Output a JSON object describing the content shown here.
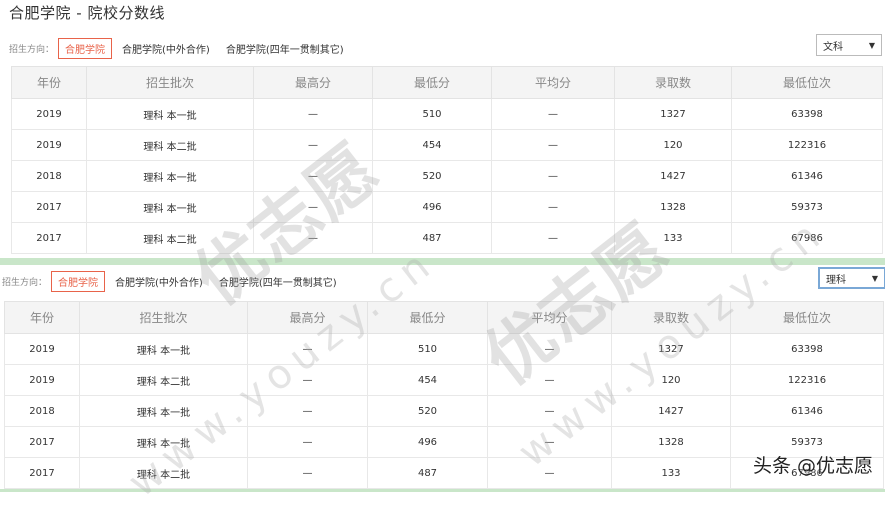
{
  "title": "合肥学院 - 院校分数线",
  "filter": {
    "label": "招生方向：",
    "options": [
      "合肥学院",
      "合肥学院(中外合作)",
      "合肥学院(四年一贯制其它)"
    ],
    "active": "合肥学院"
  },
  "top_select": {
    "value": "文科"
  },
  "bottom_select": {
    "value": "理科"
  },
  "table": {
    "headers": [
      "年份",
      "招生批次",
      "最高分",
      "最低分",
      "平均分",
      "录取数",
      "最低位次"
    ],
    "rows": [
      [
        "2019",
        "理科 本一批",
        "—",
        "510",
        "—",
        "1327",
        "63398"
      ],
      [
        "2019",
        "理科 本二批",
        "—",
        "454",
        "—",
        "120",
        "122316"
      ],
      [
        "2018",
        "理科 本一批",
        "—",
        "520",
        "—",
        "1427",
        "61346"
      ],
      [
        "2017",
        "理科 本一批",
        "—",
        "496",
        "—",
        "1328",
        "59373"
      ],
      [
        "2017",
        "理科 本二批",
        "—",
        "487",
        "—",
        "133",
        "67986"
      ]
    ]
  },
  "watermark": {
    "logo": "优志愿",
    "url": "www.youzy.cn"
  },
  "credit": "头条 @优志愿"
}
